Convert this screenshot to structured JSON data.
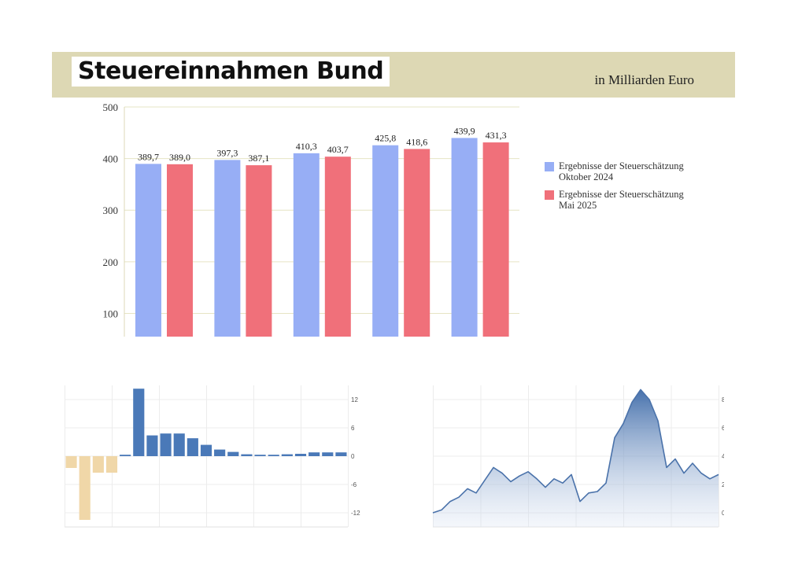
{
  "header": {
    "title": "Steuereinnahmen Bund",
    "unit": "in Milliarden Euro"
  },
  "colors": {
    "blue": "#97aef5",
    "red": "#f0707a",
    "header_bg": "#ddd8b4",
    "bar_neg": "#f0d7a8",
    "bar_pos": "#4a79b8",
    "area_line": "#4a72aa"
  },
  "chart_data": [
    {
      "type": "bar",
      "title": "",
      "categories": [
        "",
        "",
        "",
        "",
        ""
      ],
      "series": [
        {
          "name": "Ergebnisse der Steuerschätzung\nOktober 2024",
          "values": [
            389.7,
            397.3,
            410.3,
            425.8,
            439.9
          ],
          "labels": [
            "389,7",
            "397,3",
            "410,3",
            "425,8",
            "439,9"
          ]
        },
        {
          "name": "Ergebnisse der Steuerschätzung\nMai 2025",
          "values": [
            389.0,
            387.1,
            403.7,
            418.6,
            431.3
          ],
          "labels": [
            "389,0",
            "387,1",
            "403,7",
            "418,6",
            "431,3"
          ]
        }
      ],
      "ylim": [
        55,
        500
      ],
      "yticks": [
        100,
        200,
        300,
        400,
        500
      ],
      "grid": true,
      "legend": "right"
    },
    {
      "type": "bar",
      "values": [
        -2.5,
        -13.5,
        -3.5,
        -3.5,
        0.3,
        14.3,
        4.4,
        4.8,
        4.8,
        3.8,
        2.4,
        1.4,
        0.9,
        0.4,
        0.3,
        0.3,
        0.4,
        0.5,
        0.8,
        0.8,
        0.8
      ],
      "ylim": [
        -15,
        15
      ],
      "yticks": [
        12,
        6,
        0,
        -6,
        -12
      ],
      "grid": true
    },
    {
      "type": "area",
      "values": [
        0.0,
        0.2,
        0.8,
        1.1,
        1.7,
        1.4,
        2.3,
        3.2,
        2.8,
        2.2,
        2.6,
        2.9,
        2.4,
        1.8,
        2.4,
        2.1,
        2.7,
        0.8,
        1.4,
        1.5,
        2.1,
        5.3,
        6.3,
        7.8,
        8.7,
        8.0,
        6.5,
        3.2,
        3.8,
        2.8,
        3.5,
        2.8,
        2.4,
        2.7
      ],
      "ylim": [
        -1,
        9
      ],
      "yticks": [
        8,
        6,
        4,
        2,
        0
      ],
      "grid": true
    }
  ]
}
